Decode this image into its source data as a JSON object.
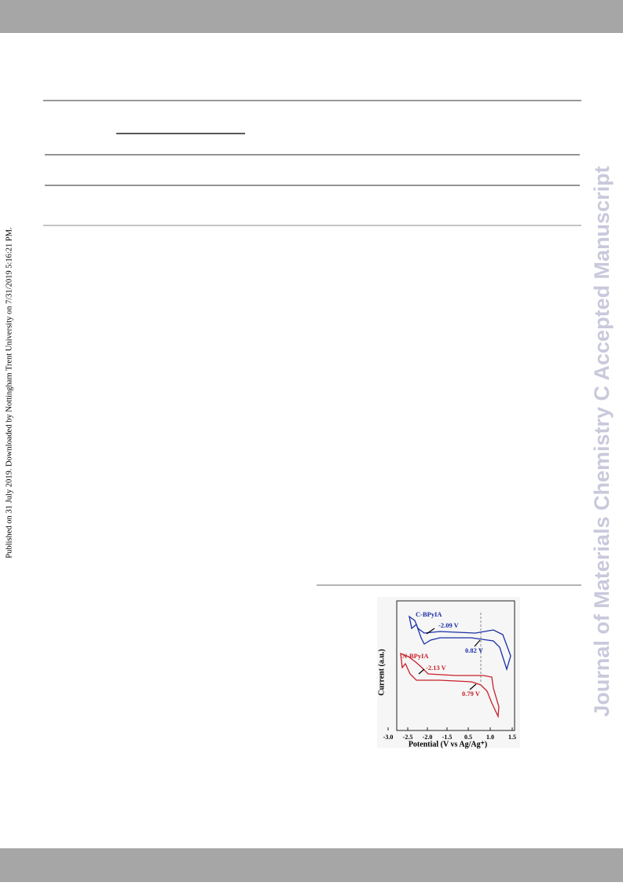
{
  "sidebar": {
    "provenance": "Published on 31 July 2019. Downloaded by Nottingham Trent University on 7/31/2019 5:16:21 PM.",
    "watermark": "Journal of Materials Chemistry C Accepted Manuscript"
  },
  "figure": {
    "y_label": "Current (a.u.)",
    "x_label": "Potential (V vs Ag/Ag⁺)",
    "xticks": [
      {
        "value": -3,
        "label": "-3.0"
      },
      {
        "value": -2.5,
        "label": "-2.5"
      },
      {
        "value": -2,
        "label": "-2.0"
      },
      {
        "value": -1.5,
        "label": "-1.5"
      },
      0.5,
      {
        "value": 1,
        "label": "1.0"
      },
      1.5
    ],
    "annotations": [
      {
        "text": "C-BPyIA",
        "color": "#1a2fa8"
      },
      {
        "text": "-2.09 V",
        "color": "#1a2fa8"
      },
      {
        "text": "0.82 V",
        "color": "#1a2fa8"
      },
      {
        "text": "N-BPyIA",
        "color": "#c8202a"
      },
      {
        "text": "-2.13 V",
        "color": "#c8202a"
      },
      {
        "text": "0.79 V",
        "color": "#c8202a"
      }
    ]
  }
}
